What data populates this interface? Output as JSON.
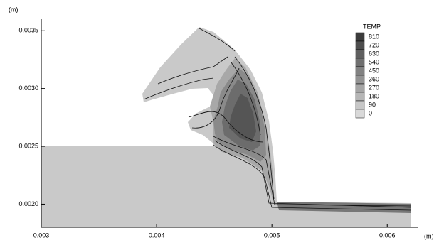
{
  "chart_data": {
    "type": "contour",
    "x_unit": "(m)",
    "y_unit": "(m)",
    "xlim": [
      0.003,
      0.00627
    ],
    "ylim": [
      0.0018,
      0.0036
    ],
    "xticks": [
      0.003,
      0.004,
      0.005,
      0.006
    ],
    "yticks": [
      {
        "value": 0.002,
        "label": "0.0020"
      },
      0.0025,
      {
        "value": 0.003,
        "label": "0.0030"
      },
      0.0035
    ],
    "legend": {
      "title": "TEMP",
      "levels": [
        810,
        720,
        630,
        540,
        450,
        360,
        270,
        180,
        90,
        0
      ],
      "colors": [
        "#3c3c3c",
        "#4e4e4e",
        "#5f5f5f",
        "#707070",
        "#828282",
        "#939393",
        "#a5a5a5",
        "#b6b6b6",
        "#c7c7c7",
        "#d9d9d9"
      ]
    }
  }
}
